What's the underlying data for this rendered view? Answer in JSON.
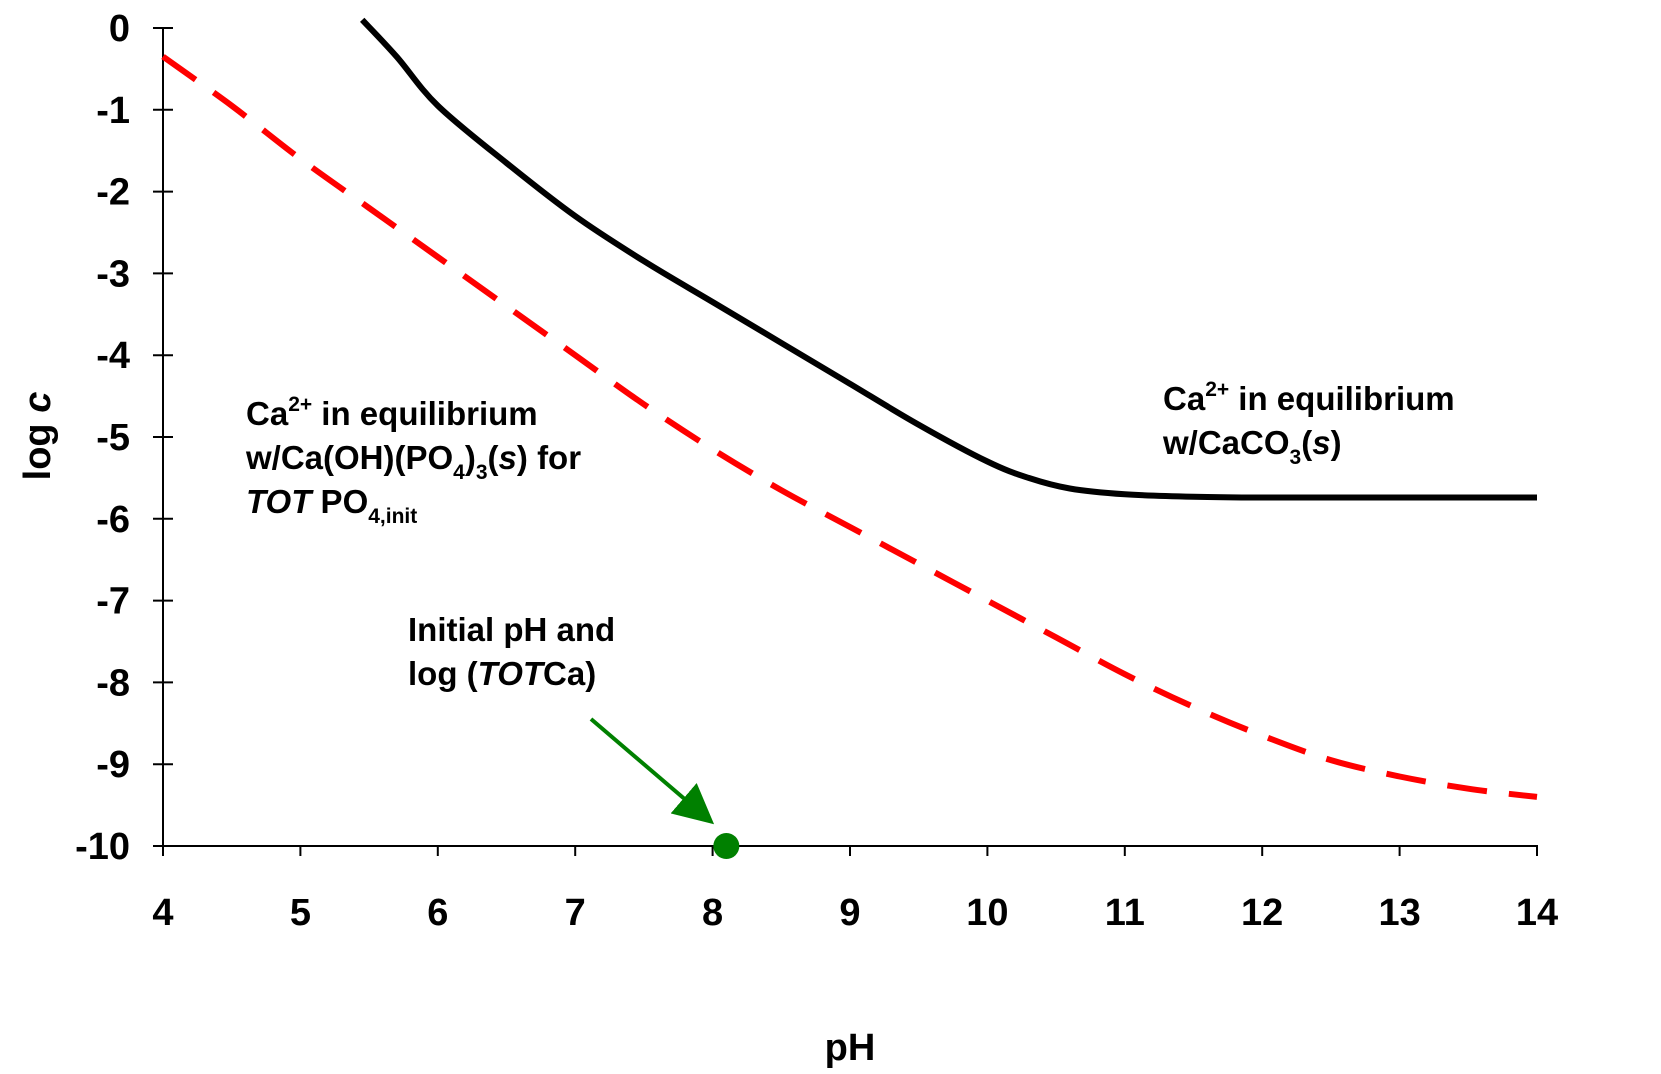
{
  "chart_data": {
    "type": "line",
    "xlabel": "pH",
    "ylabel_prefix": "log ",
    "ylabel_var": "c",
    "xlim": [
      4,
      14
    ],
    "ylim": [
      -10,
      0
    ],
    "x_ticks": [
      "4",
      "5",
      "6",
      "7",
      "8",
      "9",
      "10",
      "11",
      "12",
      "13",
      "14"
    ],
    "y_ticks": [
      "0",
      "-1",
      "-2",
      "-3",
      "-4",
      "-5",
      "-6",
      "-7",
      "-8",
      "-9",
      "-10"
    ],
    "grid": false,
    "series": [
      {
        "style": "solid",
        "color": "#000000",
        "x": [
          5.45,
          5.7,
          6.0,
          6.5,
          7.0,
          7.5,
          8.0,
          8.5,
          9.0,
          9.5,
          10.0,
          10.3,
          10.6,
          11.0,
          11.5,
          12.0,
          13.0,
          14.0
        ],
        "y": [
          0.1,
          -0.35,
          -0.95,
          -1.65,
          -2.3,
          -2.85,
          -3.35,
          -3.85,
          -4.35,
          -4.85,
          -5.3,
          -5.5,
          -5.63,
          -5.7,
          -5.73,
          -5.74,
          -5.74,
          -5.74
        ]
      },
      {
        "style": "dashed",
        "color": "#ff0000",
        "x": [
          4.0,
          4.5,
          5.0,
          5.5,
          6.0,
          6.5,
          7.0,
          7.5,
          8.0,
          8.5,
          9.0,
          9.5,
          10.0,
          10.5,
          11.0,
          11.5,
          12.0,
          12.5,
          13.0,
          13.5,
          14.0
        ],
        "y": [
          -0.35,
          -0.95,
          -1.6,
          -2.2,
          -2.8,
          -3.4,
          -4.0,
          -4.6,
          -5.15,
          -5.65,
          -6.1,
          -6.55,
          -7.0,
          -7.45,
          -7.9,
          -8.3,
          -8.65,
          -8.95,
          -9.15,
          -9.3,
          -9.4
        ]
      }
    ],
    "point": {
      "x": 8.1,
      "y": -10,
      "color": "#008000"
    },
    "annotations": {
      "black_line": {
        "l1": "Ca",
        "l1_sup": "2+",
        "l1_rest": " in equilibrium",
        "l2": "w/CaCO",
        "l2_sub": "3",
        "l2_mid": "(",
        "l2_ital": "s",
        "l2_end": ")"
      },
      "red_line": {
        "l1": "Ca",
        "l1_sup": "2+",
        "l1_rest": " in equilibrium",
        "l2": "w/Ca(OH)(PO",
        "l2_sub": "4",
        "l2_mid": ")",
        "l2_sub2": "3",
        "l2_mid2": "(",
        "l2_ital": "s",
        "l2_end": ") for",
        "l3_ital": "TOT",
        "l3": " PO",
        "l3_sub": "4,init"
      },
      "point": {
        "l1": "Initial pH and",
        "l2": "log (",
        "l2_ital": "TOT",
        "l2_end": "Ca)"
      }
    }
  }
}
